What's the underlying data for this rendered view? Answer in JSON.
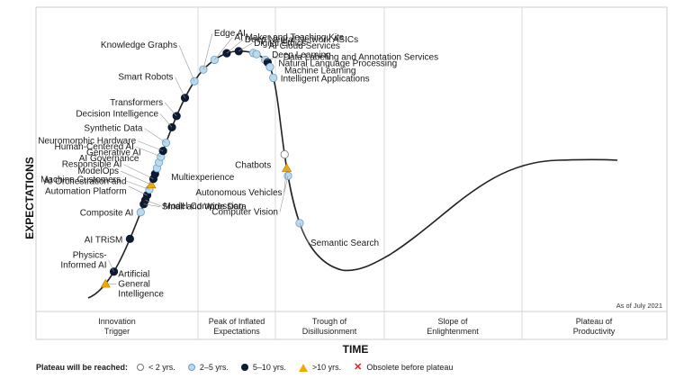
{
  "chart_data": {
    "type": "scatter",
    "ylabel": "EXPECTATIONS",
    "xlabel": "TIME",
    "as_of": "As of July 2021",
    "phases": [
      "Innovation\nTrigger",
      "Peak of Inflated\nExpectations",
      "Trough of\nDisillusionment",
      "Slope of\nEnlightenment",
      "Plateau of\nProductivity"
    ],
    "legend_title": "Plateau will be reached:",
    "legend": [
      {
        "key": "lt2",
        "label": "< 2 yrs."
      },
      {
        "key": "2to5",
        "label": "2–5 yrs."
      },
      {
        "key": "5to10",
        "label": "5–10 yrs."
      },
      {
        "key": "gt10",
        "label": ">10 yrs."
      },
      {
        "key": "obsolete",
        "label": "Obsolete before plateau"
      }
    ],
    "colors": {
      "lt2": "#ffffff",
      "2to5": "#bcd9ee",
      "5to10": "#0d1a33",
      "gt10": "#f2a900",
      "obsolete": "#dd2222",
      "curve": "#222222"
    },
    "technologies": [
      {
        "name": "Artificial\nGeneral\nIntelligence",
        "t": 0.026,
        "plateau": "gt10"
      },
      {
        "name": "Physics-\nInformed AI",
        "t": 0.043,
        "plateau": "5to10"
      },
      {
        "name": "AI TRiSM",
        "t": 0.085,
        "plateau": "5to10"
      },
      {
        "name": "Composite AI",
        "t": 0.118,
        "plateau": "2to5"
      },
      {
        "name": "Small and Wide Data",
        "t": 0.128,
        "plateau": "5to10"
      },
      {
        "name": "Model Compression",
        "t": 0.133,
        "plateau": "5to10"
      },
      {
        "name": "AI Orchestration and\nAutomation Platform",
        "t": 0.139,
        "plateau": "5to10"
      },
      {
        "name": "Machine Customers",
        "t": 0.146,
        "plateau": "2to5"
      },
      {
        "name": "ModelOps",
        "t": 0.152,
        "plateau": "gt10"
      },
      {
        "name": "Responsible AI",
        "t": 0.159,
        "plateau": "5to10"
      },
      {
        "name": "Multiexperience",
        "t": 0.165,
        "plateau": "5to10"
      },
      {
        "name": "AI Governance",
        "t": 0.172,
        "plateau": "2to5"
      },
      {
        "name": "Generative AI",
        "t": 0.179,
        "plateau": "2to5"
      },
      {
        "name": "Human-Centered AI",
        "t": 0.186,
        "plateau": "2to5"
      },
      {
        "name": "Neuromorphic Hardware",
        "t": 0.193,
        "plateau": "5to10"
      },
      {
        "name": "Synthetic Data",
        "t": 0.203,
        "plateau": "2to5"
      },
      {
        "name": "Decision Intelligence",
        "t": 0.222,
        "plateau": "5to10"
      },
      {
        "name": "Transformers",
        "t": 0.236,
        "plateau": "5to10"
      },
      {
        "name": "Smart Robots",
        "t": 0.259,
        "plateau": "5to10"
      },
      {
        "name": "Knowledge Graphs",
        "t": 0.281,
        "plateau": "2to5"
      },
      {
        "name": "Edge AI",
        "t": 0.298,
        "plateau": "2to5"
      },
      {
        "name": "AI Maker and Teaching Kits",
        "t": 0.315,
        "plateau": "2to5"
      },
      {
        "name": "Deep Neural Network ASICs",
        "t": 0.331,
        "plateau": "5to10"
      },
      {
        "name": "Digital Ethics",
        "t": 0.345,
        "plateau": "5to10"
      },
      {
        "name": "AI Cloud Services",
        "t": 0.362,
        "plateau": "2to5"
      },
      {
        "name": "Deep Learning",
        "t": 0.366,
        "plateau": "2to5"
      },
      {
        "name": "Data Labeling and Annotation Services",
        "t": 0.378,
        "plateau": "2to5"
      },
      {
        "name": "Natural Language Processing",
        "t": 0.382,
        "plateau": "5to10"
      },
      {
        "name": "Machine Learning",
        "t": 0.388,
        "plateau": "2to5"
      },
      {
        "name": "Intelligent Applications",
        "t": 0.401,
        "plateau": "2to5"
      },
      {
        "name": "Chatbots",
        "t": 0.49,
        "plateau": "lt2"
      },
      {
        "name": "Autonomous Vehicles",
        "t": 0.506,
        "plateau": "gt10"
      },
      {
        "name": "Computer Vision",
        "t": 0.515,
        "plateau": "2to5"
      },
      {
        "name": "Semantic Search",
        "t": 0.571,
        "plateau": "2to5"
      }
    ]
  }
}
